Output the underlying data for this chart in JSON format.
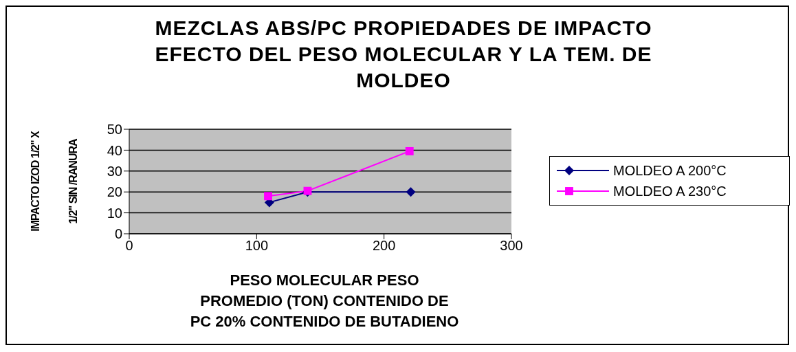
{
  "chart_data": {
    "type": "line",
    "title": "MEZCLAS ABS/PC PROPIEDADES DE IMPACTO\nEFECTO DEL PESO MOLECULAR Y LA TEM. DE\nMOLDEO",
    "xlabel": "PESO MOLECULAR PESO\nPROMEDIO (TON) CONTENIDO DE\nPC 20% CONTENIDO DE BUTADIENO",
    "ylabel": "IMPACTO IZOD 1/2\" X\n1/2\" SIN /RANURA",
    "series": [
      {
        "name": "MOLDEO A 200°C",
        "color": "#000080",
        "marker": "diamond",
        "x": [
          110,
          140,
          221
        ],
        "values": [
          15,
          20,
          20
        ]
      },
      {
        "name": "MOLDEO A 230°C",
        "color": "#ff00ff",
        "marker": "square",
        "x": [
          109,
          140,
          220
        ],
        "values": [
          18,
          20.5,
          39.5
        ]
      }
    ],
    "xlim": [
      0,
      300
    ],
    "xticks": [
      0,
      100,
      200,
      300
    ],
    "ylim": [
      0,
      50
    ],
    "yticks": [
      0,
      10,
      20,
      30,
      40,
      50
    ],
    "grid": "y",
    "legend": "right"
  }
}
